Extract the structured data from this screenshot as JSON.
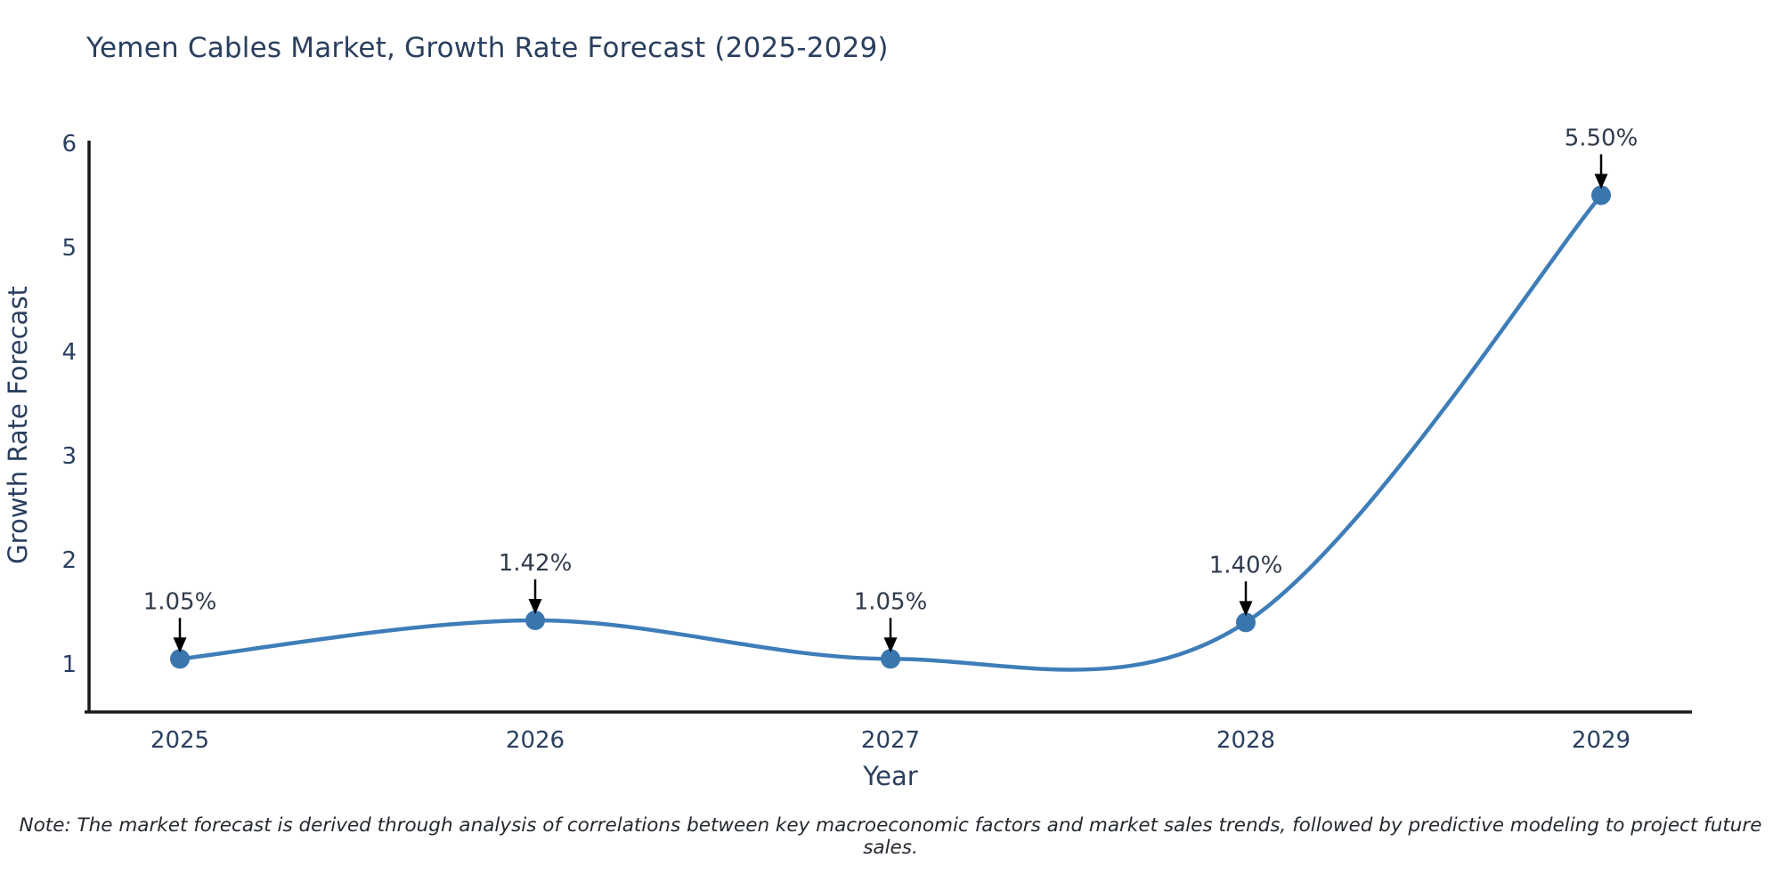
{
  "title": "Yemen Cables Market, Growth Rate Forecast (2025-2029)",
  "note": "Note: The market forecast is derived through analysis of correlations between key macroeconomic factors and market sales trends, followed by predictive modeling to project future sales.",
  "colors": {
    "title_text": "#2a3f5f",
    "axis_text": "#2a3f5f",
    "annotation_text": "#2f3b4c",
    "axis_line": "#1a1a1a",
    "line": "#3e7db8",
    "marker": "#3a76ae",
    "arrow": "#000000",
    "background": "#ffffff"
  },
  "chart_data": {
    "type": "line",
    "title": "Yemen Cables Market, Growth Rate Forecast (2025-2029)",
    "xlabel": "Year",
    "ylabel": "Growth Rate Forecast",
    "x": [
      2025,
      2026,
      2027,
      2028,
      2029
    ],
    "y": [
      1.05,
      1.42,
      1.05,
      1.4,
      5.5
    ],
    "point_labels": [
      "1.05%",
      "1.42%",
      "1.05%",
      "1.40%",
      "5.50%"
    ],
    "xticks": [
      "2025",
      "2026",
      "2027",
      "2028",
      "2029"
    ],
    "yticks": [
      1,
      2,
      3,
      4,
      5,
      6
    ],
    "ylim": [
      0.54,
      6.05
    ],
    "line_shape": "spline",
    "grid": false,
    "legend_position": "none",
    "annotation_style": "arrow-down-to-point"
  }
}
